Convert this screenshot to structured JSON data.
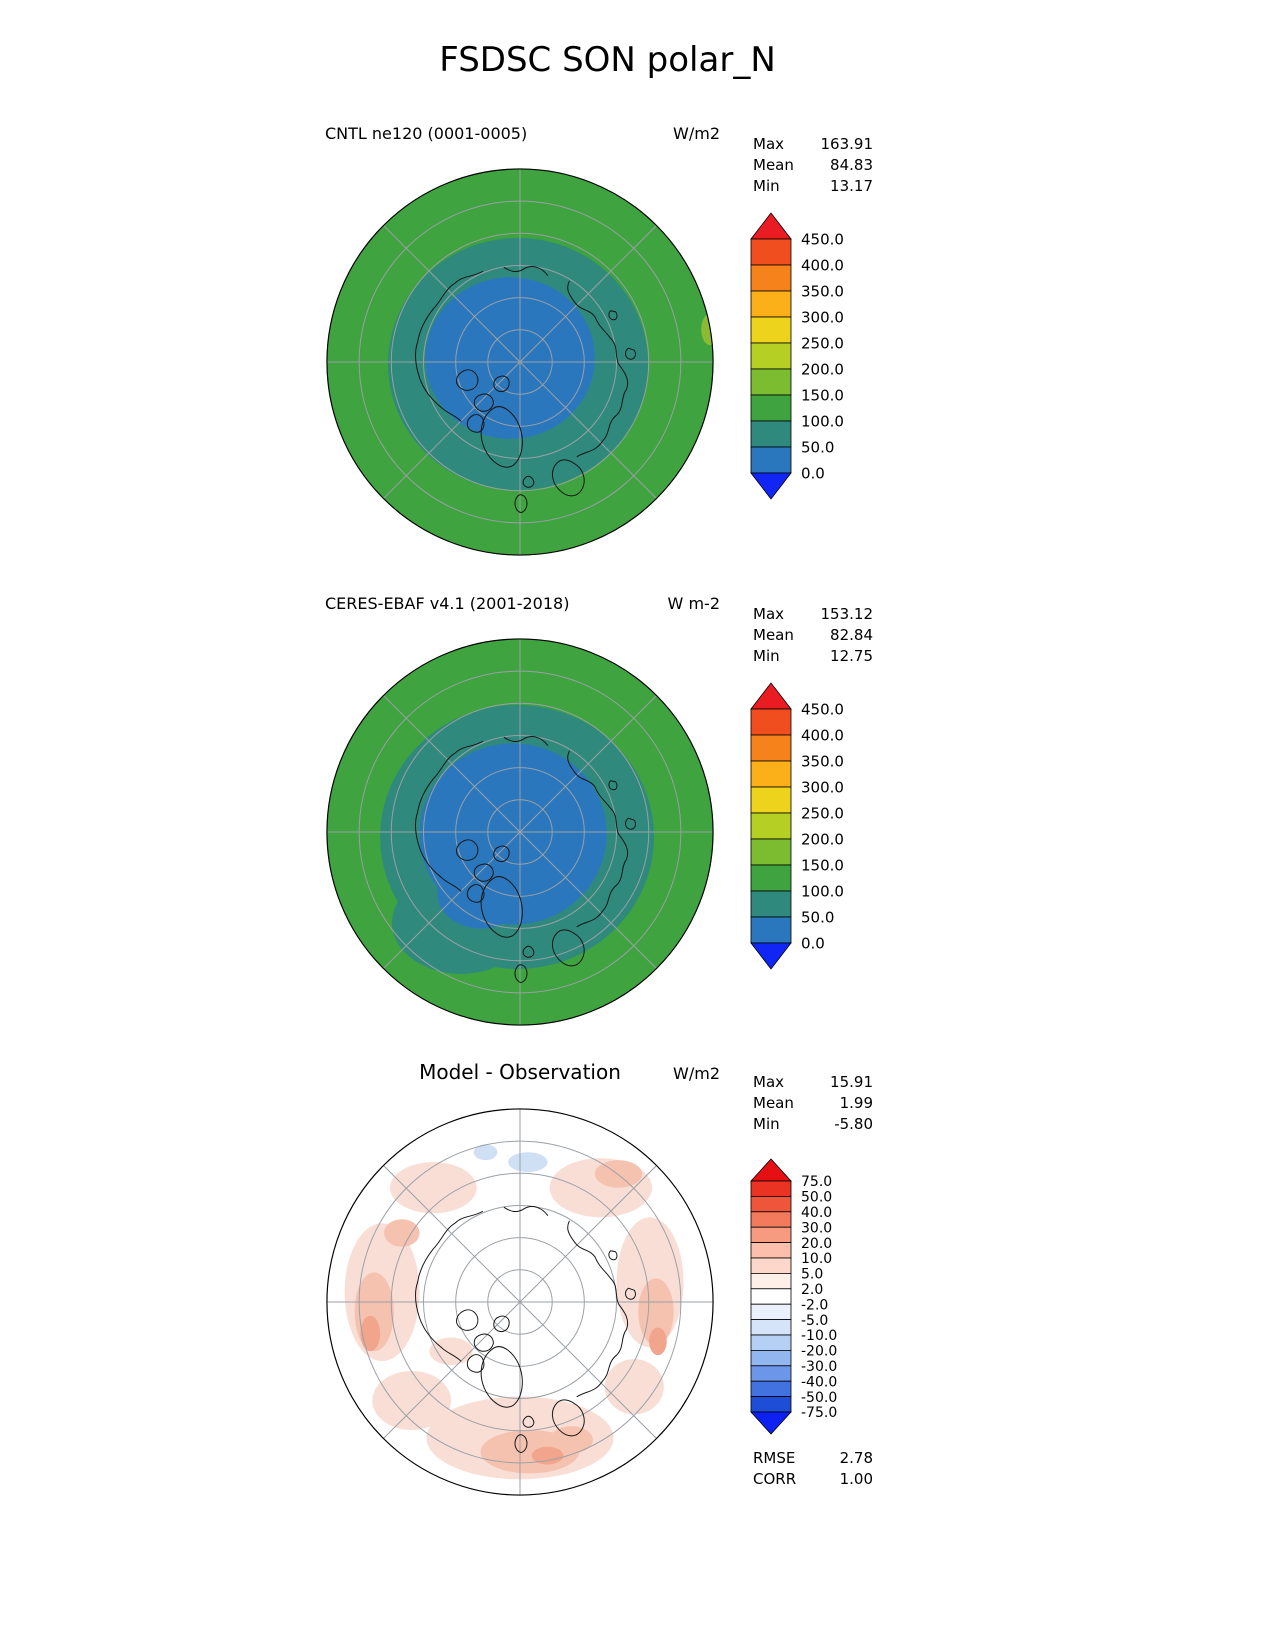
{
  "title": "FSDSC SON polar_N",
  "palette": {
    "map_green": "#3fa33f",
    "map_teal": "#2f8a7d",
    "map_blue": "#2b77bd",
    "map_lime": "#8abb33",
    "graticule": "#9aa0a6",
    "coast": "#151515",
    "diff_pink_light": "#f9ded6",
    "diff_pink_mid": "#f5c2b0",
    "diff_pink_deep": "#f0a58c",
    "diff_blue_light": "#cfe0f4"
  },
  "panels": [
    {
      "name": "model",
      "title": "CNTL ne120 (0001-0005)",
      "units": "W/m2",
      "stats": [
        {
          "label": "Max",
          "value": "163.91"
        },
        {
          "label": "Mean",
          "value": "84.83"
        },
        {
          "label": "Min",
          "value": "13.17"
        }
      ],
      "colorbar": {
        "labels": [
          "450.0",
          "400.0",
          "350.0",
          "300.0",
          "250.0",
          "200.0",
          "150.0",
          "100.0",
          "50.0",
          "0.0"
        ],
        "colors": [
          "#e81c22",
          "#f14e20",
          "#f6821c",
          "#fbb01a",
          "#eed31d",
          "#b5cf25",
          "#7cbc31",
          "#3fa33f",
          "#2f8a7d",
          "#2b77bd",
          "#1126f5"
        ]
      }
    },
    {
      "name": "obs",
      "title": "CERES-EBAF v4.1 (2001-2018)",
      "units": "W m-2",
      "stats": [
        {
          "label": "Max",
          "value": "153.12"
        },
        {
          "label": "Mean",
          "value": "82.84"
        },
        {
          "label": "Min",
          "value": "12.75"
        }
      ],
      "colorbar": {
        "labels": [
          "450.0",
          "400.0",
          "350.0",
          "300.0",
          "250.0",
          "200.0",
          "150.0",
          "100.0",
          "50.0",
          "0.0"
        ],
        "colors": [
          "#e81c22",
          "#f14e20",
          "#f6821c",
          "#fbb01a",
          "#eed31d",
          "#b5cf25",
          "#7cbc31",
          "#3fa33f",
          "#2f8a7d",
          "#2b77bd",
          "#1126f5"
        ]
      }
    },
    {
      "name": "diff",
      "title": "Model - Observation",
      "units": "W/m2",
      "stats": [
        {
          "label": "Max",
          "value": "15.91"
        },
        {
          "label": "Mean",
          "value": "1.99"
        },
        {
          "label": "Min",
          "value": "-5.80"
        }
      ],
      "colorbar": {
        "labels": [
          "75.0",
          "50.0",
          "40.0",
          "30.0",
          "20.0",
          "10.0",
          "5.0",
          "2.0",
          "-2.0",
          "-5.0",
          "-10.0",
          "-20.0",
          "-30.0",
          "-40.0",
          "-50.0",
          "-75.0"
        ],
        "colors": [
          "#e60f13",
          "#ea3323",
          "#ef553b",
          "#f37a5c",
          "#f79b80",
          "#fbbfab",
          "#fdd8ca",
          "#feefe9",
          "#ffffff",
          "#eaf1fc",
          "#d6e4fa",
          "#b6d0f5",
          "#92b6ef",
          "#6c97e8",
          "#4272df",
          "#1e4ed8",
          "#0d22f2"
        ]
      }
    }
  ],
  "summary": [
    {
      "label": "RMSE",
      "value": "2.78"
    },
    {
      "label": "CORR",
      "value": "1.00"
    }
  ],
  "chart_data": [
    {
      "type": "heatmap",
      "subtype": "polar_stereographic_contour_map",
      "variable": "FSDSC",
      "season": "SON",
      "region": "polar_N",
      "title": "CNTL ne120 (0001-0005)",
      "units": "W/m2",
      "stats": {
        "max": 163.91,
        "mean": 84.83,
        "min": 13.17
      },
      "contour_levels": [
        0,
        50,
        100,
        150,
        200,
        250,
        300,
        350,
        400,
        450
      ],
      "legend_position": "right",
      "description": "Field decreases poleward: ~100-150 W/m2 green outer ring, 50-100 teal annulus, 0-50 blue around pole"
    },
    {
      "type": "heatmap",
      "subtype": "polar_stereographic_contour_map",
      "variable": "FSDSC",
      "season": "SON",
      "region": "polar_N",
      "title": "CERES-EBAF v4.1 (2001-2018)",
      "units": "W m-2",
      "stats": {
        "max": 153.12,
        "mean": 82.84,
        "min": 12.75
      },
      "contour_levels": [
        0,
        50,
        100,
        150,
        200,
        250,
        300,
        350,
        400,
        450
      ],
      "legend_position": "right",
      "description": "Same pattern as model; blue 0-50 region slightly larger, extending over Greenland/Canadian Archipelago"
    },
    {
      "type": "heatmap",
      "subtype": "polar_stereographic_contour_map",
      "variable": "FSDSC",
      "season": "SON",
      "region": "polar_N",
      "title": "Model - Observation",
      "units": "W/m2",
      "stats": {
        "max": 15.91,
        "mean": 1.99,
        "min": -5.8,
        "rmse": 2.78,
        "corr": 1.0
      },
      "contour_levels": [
        -75,
        -50,
        -40,
        -30,
        -20,
        -10,
        -5,
        -2,
        2,
        5,
        10,
        20,
        30,
        40,
        50,
        75
      ],
      "legend_position": "right",
      "description": "Mostly near-zero white with scattered light pink (+2 to +10) patches around periphery and a faint blue patch near top"
    }
  ]
}
